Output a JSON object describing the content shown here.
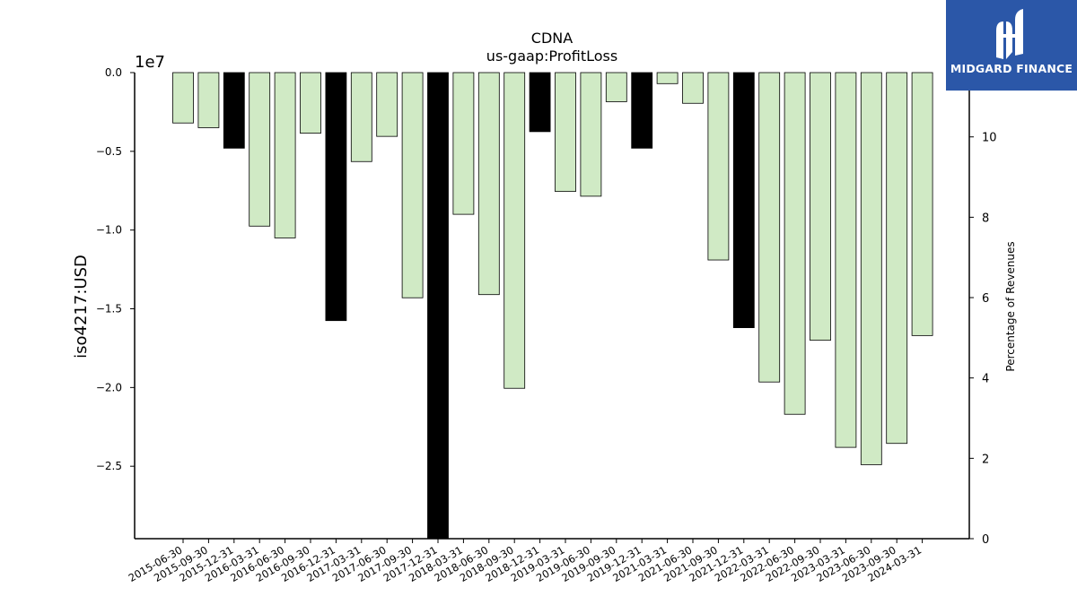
{
  "chart_data": {
    "type": "bar",
    "title": "CDNA",
    "subtitle": "us-gaap:ProfitLoss",
    "ylabel": "iso4217:USD",
    "y_offset_label": "1e7",
    "y2label": "Percentage of Revenues",
    "ylim": [
      -2.96,
      0
    ],
    "y2lim": [
      0,
      11.6
    ],
    "yticks": [
      "0.0",
      "−0.5",
      "−1.0",
      "−1.5",
      "−2.0",
      "−2.5"
    ],
    "y2ticks": [
      "0",
      "2",
      "4",
      "6",
      "8",
      "10"
    ],
    "categories": [
      "2015-06-30",
      "2015-09-30",
      "2015-12-31",
      "2016-03-31",
      "2016-06-30",
      "2016-09-30",
      "2016-12-31",
      "2017-03-31",
      "2017-06-30",
      "2017-09-30",
      "2017-12-31",
      "2018-03-31",
      "2018-06-30",
      "2018-09-30",
      "2018-12-31",
      "2019-03-31",
      "2019-06-30",
      "2019-09-30",
      "2019-12-31",
      "2021-03-31",
      "2021-06-30",
      "2021-09-30",
      "2021-12-31",
      "2022-03-31",
      "2022-06-30",
      "2022-09-30",
      "2023-03-31",
      "2023-06-30",
      "2023-09-30",
      "2024-03-31"
    ],
    "values": [
      -0.32,
      -0.35,
      -0.48,
      -0.975,
      -1.05,
      -0.385,
      -1.575,
      -0.565,
      -0.405,
      -1.43,
      -2.96,
      -0.9,
      -1.41,
      -2.005,
      -0.375,
      -0.755,
      -0.785,
      -0.185,
      -0.48,
      -0.07,
      -0.195,
      -1.19,
      -1.62,
      -1.965,
      -2.17,
      -1.7,
      -2.38,
      -2.49,
      -2.355,
      -1.67
    ],
    "bar_kind": [
      "quarter",
      "quarter",
      "annual",
      "quarter",
      "quarter",
      "quarter",
      "annual",
      "quarter",
      "quarter",
      "quarter",
      "annual",
      "quarter",
      "quarter",
      "quarter",
      "annual",
      "quarter",
      "quarter",
      "quarter",
      "annual",
      "quarter",
      "quarter",
      "quarter",
      "annual",
      "quarter",
      "quarter",
      "quarter",
      "quarter",
      "quarter",
      "quarter",
      "quarter"
    ],
    "colors": {
      "quarter": "#d0eac5",
      "annual": "#000000",
      "edge": "#000000"
    }
  },
  "logo": {
    "text": "MIDGARD FINANCE",
    "background": "#2b57a8"
  }
}
